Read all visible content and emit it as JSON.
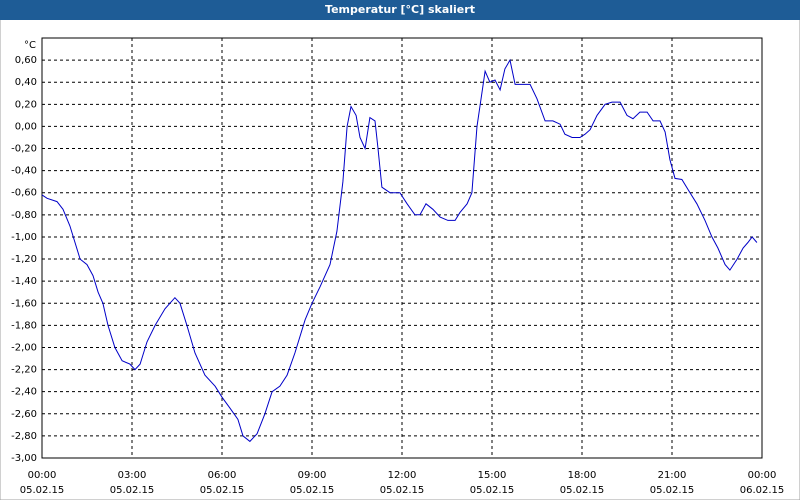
{
  "chart_data": {
    "type": "line",
    "title": "Temperatur [°C] skaliert",
    "y_unit": "°C",
    "x": [
      0,
      0.17,
      0.5,
      0.7,
      0.93,
      1.27,
      1.5,
      1.7,
      1.87,
      2.03,
      2.2,
      2.43,
      2.67,
      2.93,
      3.1,
      3.27,
      3.5,
      3.77,
      4.1,
      4.43,
      4.6,
      4.83,
      5.1,
      5.43,
      5.77,
      6,
      6.27,
      6.53,
      6.7,
      6.93,
      7.17,
      7.43,
      7.67,
      7.93,
      8.17,
      8.43,
      8.77,
      9,
      9.27,
      9.6,
      9.83,
      10.03,
      10.17,
      10.3,
      10.47,
      10.6,
      10.77,
      10.93,
      11.1,
      11.2,
      11.33,
      11.6,
      11.93,
      12.17,
      12.43,
      12.6,
      12.8,
      13.03,
      13.27,
      13.53,
      13.77,
      13.93,
      14.17,
      14.33,
      14.5,
      14.77,
      14.93,
      15.1,
      15.27,
      15.43,
      15.6,
      15.77,
      15.93,
      16.27,
      16.5,
      16.77,
      17.03,
      17.27,
      17.43,
      17.67,
      17.93,
      18.1,
      18.27,
      18.5,
      18.77,
      19,
      19.27,
      19.5,
      19.7,
      19.93,
      20.17,
      20.37,
      20.6,
      20.77,
      20.93,
      21.1,
      21.33,
      21.6,
      21.83,
      22.1,
      22.33,
      22.53,
      22.77,
      22.93,
      23.17,
      23.37,
      23.53,
      23.67,
      23.83
    ],
    "series": [
      {
        "color": "#0000c8",
        "values": [
          -0.62,
          -0.65,
          -0.68,
          -0.75,
          -0.9,
          -1.2,
          -1.25,
          -1.35,
          -1.5,
          -1.6,
          -1.8,
          -2.0,
          -2.12,
          -2.15,
          -2.2,
          -2.15,
          -1.95,
          -1.8,
          -1.65,
          -1.55,
          -1.6,
          -1.8,
          -2.05,
          -2.25,
          -2.35,
          -2.45,
          -2.55,
          -2.65,
          -2.8,
          -2.85,
          -2.78,
          -2.6,
          -2.4,
          -2.35,
          -2.25,
          -2.05,
          -1.75,
          -1.6,
          -1.45,
          -1.25,
          -0.95,
          -0.5,
          0.0,
          0.18,
          0.1,
          -0.1,
          -0.2,
          0.08,
          0.05,
          -0.2,
          -0.55,
          -0.6,
          -0.6,
          -0.7,
          -0.8,
          -0.8,
          -0.7,
          -0.75,
          -0.82,
          -0.85,
          -0.85,
          -0.78,
          -0.7,
          -0.6,
          0.0,
          0.5,
          0.4,
          0.42,
          0.33,
          0.52,
          0.6,
          0.38,
          0.38,
          0.38,
          0.25,
          0.05,
          0.05,
          0.02,
          -0.07,
          -0.1,
          -0.1,
          -0.07,
          -0.03,
          0.1,
          0.2,
          0.22,
          0.22,
          0.1,
          0.07,
          0.13,
          0.13,
          0.05,
          0.05,
          -0.05,
          -0.3,
          -0.47,
          -0.48,
          -0.6,
          -0.7,
          -0.85,
          -1.0,
          -1.1,
          -1.25,
          -1.3,
          -1.2,
          -1.1,
          -1.05,
          -1.0,
          -1.05
        ]
      }
    ],
    "xlim": [
      0,
      24
    ],
    "ylim": [
      -3.0,
      0.8
    ],
    "grid": true,
    "xticks": [
      {
        "value": 0,
        "label": "00:00",
        "date": "05.02.15"
      },
      {
        "value": 3,
        "label": "03:00",
        "date": "05.02.15"
      },
      {
        "value": 6,
        "label": "06:00",
        "date": "05.02.15"
      },
      {
        "value": 9,
        "label": "09:00",
        "date": "05.02.15"
      },
      {
        "value": 12,
        "label": "12:00",
        "date": "05.02.15"
      },
      {
        "value": 15,
        "label": "15:00",
        "date": "05.02.15"
      },
      {
        "value": 18,
        "label": "18:00",
        "date": "05.02.15"
      },
      {
        "value": 21,
        "label": "21:00",
        "date": "05.02.15"
      },
      {
        "value": 24,
        "label": "00:00",
        "date": "06.02.15"
      }
    ],
    "yticks": [
      {
        "value": 0.6,
        "label": "0,60"
      },
      {
        "value": 0.4,
        "label": "0,40"
      },
      {
        "value": 0.2,
        "label": "0,20"
      },
      {
        "value": 0,
        "label": "0,00"
      },
      {
        "value": -0.2,
        "label": "-0,20"
      },
      {
        "value": -0.4,
        "label": "-0,40"
      },
      {
        "value": -0.6,
        "label": "-0,60"
      },
      {
        "value": -0.8,
        "label": "-0,80"
      },
      {
        "value": -1.0,
        "label": "-1,00"
      },
      {
        "value": -1.2,
        "label": "-1,20"
      },
      {
        "value": -1.4,
        "label": "-1,40"
      },
      {
        "value": -1.6,
        "label": "-1,60"
      },
      {
        "value": -1.8,
        "label": "-1,80"
      },
      {
        "value": -2.0,
        "label": "-2,00"
      },
      {
        "value": -2.2,
        "label": "-2,20"
      },
      {
        "value": -2.4,
        "label": "-2,40"
      },
      {
        "value": -2.6,
        "label": "-2,60"
      },
      {
        "value": -2.8,
        "label": "-2,80"
      },
      {
        "value": -3.0,
        "label": "-3,00"
      }
    ]
  }
}
